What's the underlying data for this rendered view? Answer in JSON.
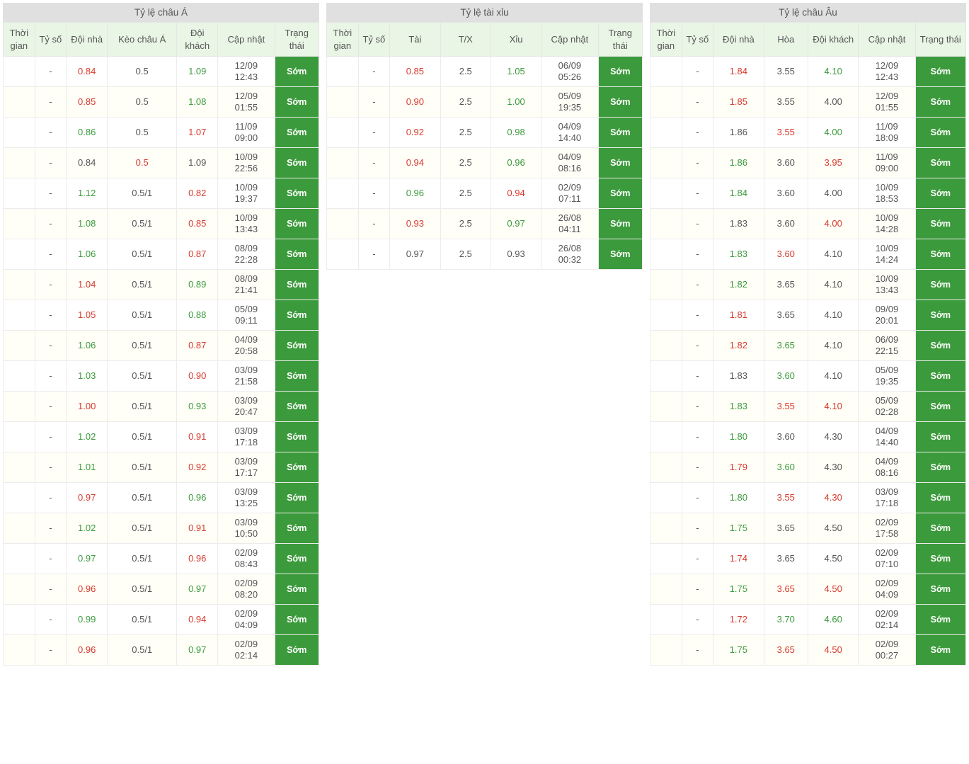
{
  "colors": {
    "header_bg": "#e0e0e0",
    "thead_bg": "#e9f5e5",
    "row_even_bg": "#fffef7",
    "row_odd_bg": "#ffffff",
    "border": "#ececec",
    "text": "#555555",
    "up": "#3b9a3b",
    "down": "#d83a2e",
    "badge_bg": "#3b9a3b",
    "badge_fg": "#ffffff"
  },
  "status_label": "Sớm",
  "panels": {
    "asia": {
      "title": "Tỷ lệ châu Á",
      "columns": [
        "Thời gian",
        "Tỷ số",
        "Đội nhà",
        "Kèo châu Á",
        "Đội khách",
        "Cập nhật",
        "Trạng thái"
      ],
      "col_widths": [
        "10%",
        "10%",
        "13%",
        "22%",
        "13%",
        "18%",
        "14%"
      ],
      "rows": [
        {
          "time": "",
          "score": "-",
          "home": {
            "v": "0.84",
            "c": "dn"
          },
          "line": {
            "v": "0.5",
            "c": ""
          },
          "away": {
            "v": "1.09",
            "c": "up"
          },
          "upd": "12/09\n12:43"
        },
        {
          "time": "",
          "score": "-",
          "home": {
            "v": "0.85",
            "c": "dn"
          },
          "line": {
            "v": "0.5",
            "c": ""
          },
          "away": {
            "v": "1.08",
            "c": "up"
          },
          "upd": "12/09\n01:55"
        },
        {
          "time": "",
          "score": "-",
          "home": {
            "v": "0.86",
            "c": "up"
          },
          "line": {
            "v": "0.5",
            "c": ""
          },
          "away": {
            "v": "1.07",
            "c": "dn"
          },
          "upd": "11/09\n09:00"
        },
        {
          "time": "",
          "score": "-",
          "home": {
            "v": "0.84",
            "c": ""
          },
          "line": {
            "v": "0.5",
            "c": "hl"
          },
          "away": {
            "v": "1.09",
            "c": ""
          },
          "upd": "10/09\n22:56"
        },
        {
          "time": "",
          "score": "-",
          "home": {
            "v": "1.12",
            "c": "up"
          },
          "line": {
            "v": "0.5/1",
            "c": ""
          },
          "away": {
            "v": "0.82",
            "c": "dn"
          },
          "upd": "10/09\n19:37"
        },
        {
          "time": "",
          "score": "-",
          "home": {
            "v": "1.08",
            "c": "up"
          },
          "line": {
            "v": "0.5/1",
            "c": ""
          },
          "away": {
            "v": "0.85",
            "c": "dn"
          },
          "upd": "10/09\n13:43"
        },
        {
          "time": "",
          "score": "-",
          "home": {
            "v": "1.06",
            "c": "up"
          },
          "line": {
            "v": "0.5/1",
            "c": ""
          },
          "away": {
            "v": "0.87",
            "c": "dn"
          },
          "upd": "08/09\n22:28"
        },
        {
          "time": "",
          "score": "-",
          "home": {
            "v": "1.04",
            "c": "dn"
          },
          "line": {
            "v": "0.5/1",
            "c": ""
          },
          "away": {
            "v": "0.89",
            "c": "up"
          },
          "upd": "08/09\n21:41"
        },
        {
          "time": "",
          "score": "-",
          "home": {
            "v": "1.05",
            "c": "dn"
          },
          "line": {
            "v": "0.5/1",
            "c": ""
          },
          "away": {
            "v": "0.88",
            "c": "up"
          },
          "upd": "05/09\n09:11"
        },
        {
          "time": "",
          "score": "-",
          "home": {
            "v": "1.06",
            "c": "up"
          },
          "line": {
            "v": "0.5/1",
            "c": ""
          },
          "away": {
            "v": "0.87",
            "c": "dn"
          },
          "upd": "04/09\n20:58"
        },
        {
          "time": "",
          "score": "-",
          "home": {
            "v": "1.03",
            "c": "up"
          },
          "line": {
            "v": "0.5/1",
            "c": ""
          },
          "away": {
            "v": "0.90",
            "c": "dn"
          },
          "upd": "03/09\n21:58"
        },
        {
          "time": "",
          "score": "-",
          "home": {
            "v": "1.00",
            "c": "dn"
          },
          "line": {
            "v": "0.5/1",
            "c": ""
          },
          "away": {
            "v": "0.93",
            "c": "up"
          },
          "upd": "03/09\n20:47"
        },
        {
          "time": "",
          "score": "-",
          "home": {
            "v": "1.02",
            "c": "up"
          },
          "line": {
            "v": "0.5/1",
            "c": ""
          },
          "away": {
            "v": "0.91",
            "c": "dn"
          },
          "upd": "03/09\n17:18"
        },
        {
          "time": "",
          "score": "-",
          "home": {
            "v": "1.01",
            "c": "up"
          },
          "line": {
            "v": "0.5/1",
            "c": ""
          },
          "away": {
            "v": "0.92",
            "c": "dn"
          },
          "upd": "03/09\n17:17"
        },
        {
          "time": "",
          "score": "-",
          "home": {
            "v": "0.97",
            "c": "dn"
          },
          "line": {
            "v": "0.5/1",
            "c": ""
          },
          "away": {
            "v": "0.96",
            "c": "up"
          },
          "upd": "03/09\n13:25"
        },
        {
          "time": "",
          "score": "-",
          "home": {
            "v": "1.02",
            "c": "up"
          },
          "line": {
            "v": "0.5/1",
            "c": ""
          },
          "away": {
            "v": "0.91",
            "c": "dn"
          },
          "upd": "03/09\n10:50"
        },
        {
          "time": "",
          "score": "-",
          "home": {
            "v": "0.97",
            "c": "up"
          },
          "line": {
            "v": "0.5/1",
            "c": ""
          },
          "away": {
            "v": "0.96",
            "c": "dn"
          },
          "upd": "02/09\n08:43"
        },
        {
          "time": "",
          "score": "-",
          "home": {
            "v": "0.96",
            "c": "dn"
          },
          "line": {
            "v": "0.5/1",
            "c": ""
          },
          "away": {
            "v": "0.97",
            "c": "up"
          },
          "upd": "02/09\n08:20"
        },
        {
          "time": "",
          "score": "-",
          "home": {
            "v": "0.99",
            "c": "up"
          },
          "line": {
            "v": "0.5/1",
            "c": ""
          },
          "away": {
            "v": "0.94",
            "c": "dn"
          },
          "upd": "02/09\n04:09"
        },
        {
          "time": "",
          "score": "-",
          "home": {
            "v": "0.96",
            "c": "dn"
          },
          "line": {
            "v": "0.5/1",
            "c": ""
          },
          "away": {
            "v": "0.97",
            "c": "up"
          },
          "upd": "02/09\n02:14"
        }
      ]
    },
    "ou": {
      "title": "Tỷ lệ tài xỉu",
      "columns": [
        "Thời gian",
        "Tỷ số",
        "Tài",
        "T/X",
        "Xỉu",
        "Cập nhật",
        "Trạng thái"
      ],
      "col_widths": [
        "10%",
        "10%",
        "16%",
        "16%",
        "16%",
        "18%",
        "14%"
      ],
      "rows": [
        {
          "time": "",
          "score": "-",
          "home": {
            "v": "0.85",
            "c": "dn"
          },
          "line": {
            "v": "2.5",
            "c": ""
          },
          "away": {
            "v": "1.05",
            "c": "up"
          },
          "upd": "06/09\n05:26"
        },
        {
          "time": "",
          "score": "-",
          "home": {
            "v": "0.90",
            "c": "dn"
          },
          "line": {
            "v": "2.5",
            "c": ""
          },
          "away": {
            "v": "1.00",
            "c": "up"
          },
          "upd": "05/09\n19:35"
        },
        {
          "time": "",
          "score": "-",
          "home": {
            "v": "0.92",
            "c": "dn"
          },
          "line": {
            "v": "2.5",
            "c": ""
          },
          "away": {
            "v": "0.98",
            "c": "up"
          },
          "upd": "04/09\n14:40"
        },
        {
          "time": "",
          "score": "-",
          "home": {
            "v": "0.94",
            "c": "dn"
          },
          "line": {
            "v": "2.5",
            "c": ""
          },
          "away": {
            "v": "0.96",
            "c": "up"
          },
          "upd": "04/09\n08:16"
        },
        {
          "time": "",
          "score": "-",
          "home": {
            "v": "0.96",
            "c": "up"
          },
          "line": {
            "v": "2.5",
            "c": ""
          },
          "away": {
            "v": "0.94",
            "c": "dn"
          },
          "upd": "02/09\n07:11"
        },
        {
          "time": "",
          "score": "-",
          "home": {
            "v": "0.93",
            "c": "dn"
          },
          "line": {
            "v": "2.5",
            "c": ""
          },
          "away": {
            "v": "0.97",
            "c": "up"
          },
          "upd": "26/08\n04:11"
        },
        {
          "time": "",
          "score": "-",
          "home": {
            "v": "0.97",
            "c": ""
          },
          "line": {
            "v": "2.5",
            "c": ""
          },
          "away": {
            "v": "0.93",
            "c": ""
          },
          "upd": "26/08\n00:32"
        }
      ]
    },
    "eu": {
      "title": "Tỷ lệ châu Âu",
      "columns": [
        "Thời gian",
        "Tỷ số",
        "Đội nhà",
        "Hòa",
        "Đội khách",
        "Cập nhật",
        "Trạng thái"
      ],
      "col_widths": [
        "10%",
        "10%",
        "16%",
        "14%",
        "16%",
        "18%",
        "16%"
      ],
      "rows": [
        {
          "time": "",
          "score": "-",
          "home": {
            "v": "1.84",
            "c": "dn"
          },
          "line": {
            "v": "3.55",
            "c": ""
          },
          "away": {
            "v": "4.10",
            "c": "up"
          },
          "upd": "12/09\n12:43"
        },
        {
          "time": "",
          "score": "-",
          "home": {
            "v": "1.85",
            "c": "dn"
          },
          "line": {
            "v": "3.55",
            "c": ""
          },
          "away": {
            "v": "4.00",
            "c": ""
          },
          "upd": "12/09\n01:55"
        },
        {
          "time": "",
          "score": "-",
          "home": {
            "v": "1.86",
            "c": ""
          },
          "line": {
            "v": "3.55",
            "c": "dn"
          },
          "away": {
            "v": "4.00",
            "c": "up"
          },
          "upd": "11/09\n18:09"
        },
        {
          "time": "",
          "score": "-",
          "home": {
            "v": "1.86",
            "c": "up"
          },
          "line": {
            "v": "3.60",
            "c": ""
          },
          "away": {
            "v": "3.95",
            "c": "dn"
          },
          "upd": "11/09\n09:00"
        },
        {
          "time": "",
          "score": "-",
          "home": {
            "v": "1.84",
            "c": "up"
          },
          "line": {
            "v": "3.60",
            "c": ""
          },
          "away": {
            "v": "4.00",
            "c": ""
          },
          "upd": "10/09\n18:53"
        },
        {
          "time": "",
          "score": "-",
          "home": {
            "v": "1.83",
            "c": ""
          },
          "line": {
            "v": "3.60",
            "c": ""
          },
          "away": {
            "v": "4.00",
            "c": "dn"
          },
          "upd": "10/09\n14:28"
        },
        {
          "time": "",
          "score": "-",
          "home": {
            "v": "1.83",
            "c": "up"
          },
          "line": {
            "v": "3.60",
            "c": "dn"
          },
          "away": {
            "v": "4.10",
            "c": ""
          },
          "upd": "10/09\n14:24"
        },
        {
          "time": "",
          "score": "-",
          "home": {
            "v": "1.82",
            "c": "up"
          },
          "line": {
            "v": "3.65",
            "c": ""
          },
          "away": {
            "v": "4.10",
            "c": ""
          },
          "upd": "10/09\n13:43"
        },
        {
          "time": "",
          "score": "-",
          "home": {
            "v": "1.81",
            "c": "dn"
          },
          "line": {
            "v": "3.65",
            "c": ""
          },
          "away": {
            "v": "4.10",
            "c": ""
          },
          "upd": "09/09\n20:01"
        },
        {
          "time": "",
          "score": "-",
          "home": {
            "v": "1.82",
            "c": "dn"
          },
          "line": {
            "v": "3.65",
            "c": "up"
          },
          "away": {
            "v": "4.10",
            "c": ""
          },
          "upd": "06/09\n22:15"
        },
        {
          "time": "",
          "score": "-",
          "home": {
            "v": "1.83",
            "c": ""
          },
          "line": {
            "v": "3.60",
            "c": "up"
          },
          "away": {
            "v": "4.10",
            "c": ""
          },
          "upd": "05/09\n19:35"
        },
        {
          "time": "",
          "score": "-",
          "home": {
            "v": "1.83",
            "c": "up"
          },
          "line": {
            "v": "3.55",
            "c": "dn"
          },
          "away": {
            "v": "4.10",
            "c": "dn"
          },
          "upd": "05/09\n02:28"
        },
        {
          "time": "",
          "score": "-",
          "home": {
            "v": "1.80",
            "c": "up"
          },
          "line": {
            "v": "3.60",
            "c": ""
          },
          "away": {
            "v": "4.30",
            "c": ""
          },
          "upd": "04/09\n14:40"
        },
        {
          "time": "",
          "score": "-",
          "home": {
            "v": "1.79",
            "c": "dn"
          },
          "line": {
            "v": "3.60",
            "c": "up"
          },
          "away": {
            "v": "4.30",
            "c": ""
          },
          "upd": "04/09\n08:16"
        },
        {
          "time": "",
          "score": "-",
          "home": {
            "v": "1.80",
            "c": "up"
          },
          "line": {
            "v": "3.55",
            "c": "dn"
          },
          "away": {
            "v": "4.30",
            "c": "dn"
          },
          "upd": "03/09\n17:18"
        },
        {
          "time": "",
          "score": "-",
          "home": {
            "v": "1.75",
            "c": "up"
          },
          "line": {
            "v": "3.65",
            "c": ""
          },
          "away": {
            "v": "4.50",
            "c": ""
          },
          "upd": "02/09\n17:58"
        },
        {
          "time": "",
          "score": "-",
          "home": {
            "v": "1.74",
            "c": "dn"
          },
          "line": {
            "v": "3.65",
            "c": ""
          },
          "away": {
            "v": "4.50",
            "c": ""
          },
          "upd": "02/09\n07:10"
        },
        {
          "time": "",
          "score": "-",
          "home": {
            "v": "1.75",
            "c": "up"
          },
          "line": {
            "v": "3.65",
            "c": "dn"
          },
          "away": {
            "v": "4.50",
            "c": "dn"
          },
          "upd": "02/09\n04:09"
        },
        {
          "time": "",
          "score": "-",
          "home": {
            "v": "1.72",
            "c": "dn"
          },
          "line": {
            "v": "3.70",
            "c": "up"
          },
          "away": {
            "v": "4.60",
            "c": "up"
          },
          "upd": "02/09\n02:14"
        },
        {
          "time": "",
          "score": "-",
          "home": {
            "v": "1.75",
            "c": "up"
          },
          "line": {
            "v": "3.65",
            "c": "dn"
          },
          "away": {
            "v": "4.50",
            "c": "dn"
          },
          "upd": "02/09\n00:27"
        }
      ]
    }
  }
}
